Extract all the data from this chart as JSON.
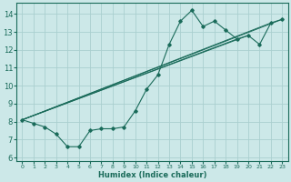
{
  "xlabel": "Humidex (Indice chaleur)",
  "ylabel": "",
  "background_color": "#cce8e8",
  "grid_color": "#aacfcf",
  "line_color": "#1a6b5a",
  "xlim": [
    -0.5,
    23.5
  ],
  "ylim": [
    5.8,
    14.6
  ],
  "yticks": [
    6,
    7,
    8,
    9,
    10,
    11,
    12,
    13,
    14
  ],
  "xticks": [
    0,
    1,
    2,
    3,
    4,
    5,
    6,
    7,
    8,
    9,
    10,
    11,
    12,
    13,
    14,
    15,
    16,
    17,
    18,
    19,
    20,
    21,
    22,
    23
  ],
  "series": [
    [
      0,
      8.1
    ],
    [
      1,
      7.9
    ],
    [
      2,
      7.7
    ],
    [
      3,
      7.3
    ],
    [
      4,
      6.6
    ],
    [
      5,
      6.6
    ],
    [
      6,
      7.5
    ],
    [
      7,
      7.6
    ],
    [
      8,
      7.6
    ],
    [
      9,
      7.7
    ],
    [
      10,
      8.6
    ],
    [
      11,
      9.8
    ],
    [
      12,
      10.6
    ],
    [
      13,
      12.3
    ],
    [
      14,
      13.6
    ],
    [
      15,
      14.2
    ],
    [
      16,
      13.3
    ],
    [
      17,
      13.6
    ],
    [
      18,
      13.1
    ],
    [
      19,
      12.6
    ],
    [
      20,
      12.8
    ],
    [
      21,
      12.3
    ],
    [
      22,
      13.5
    ],
    [
      23,
      13.7
    ]
  ],
  "lines": [
    [
      [
        0,
        8.1
      ],
      [
        23,
        13.7
      ]
    ],
    [
      [
        0,
        8.1
      ],
      [
        22,
        13.5
      ]
    ],
    [
      [
        0,
        8.1
      ],
      [
        20,
        12.8
      ]
    ],
    [
      [
        0,
        8.1
      ],
      [
        19,
        12.6
      ]
    ]
  ]
}
